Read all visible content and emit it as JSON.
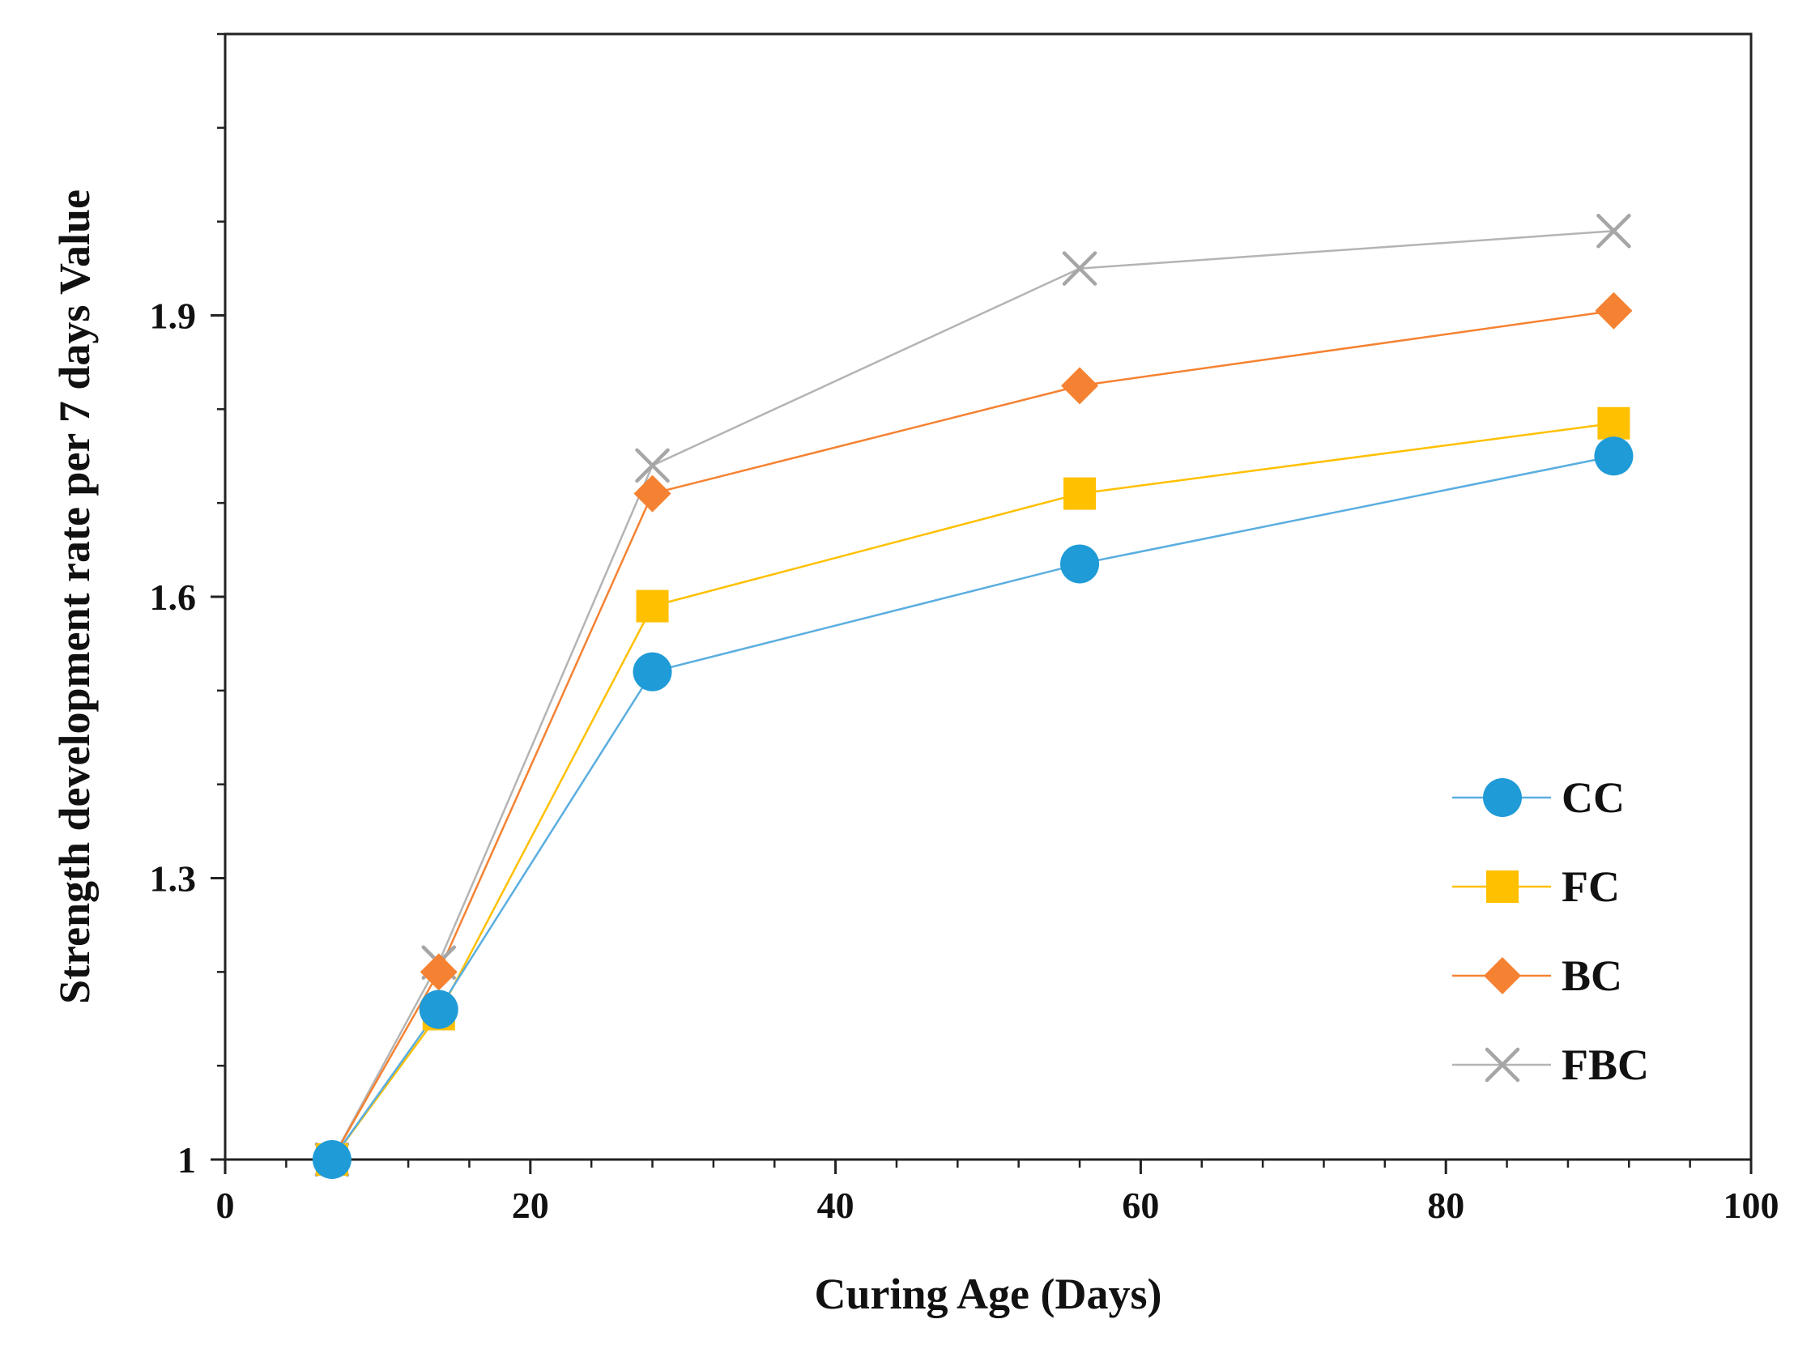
{
  "chart_data": {
    "type": "line",
    "title": "",
    "xlabel": "Curing  Age (Days)",
    "ylabel": "Strength development rate per 7 days Value",
    "xlim": [
      0,
      100
    ],
    "ylim": [
      1,
      2.2
    ],
    "xticks": [
      0,
      20,
      40,
      60,
      80,
      100
    ],
    "xtick_labels": [
      "0",
      "20",
      "40",
      "60",
      "80",
      "100"
    ],
    "yticks": [
      1,
      1.3,
      1.6,
      1.9
    ],
    "ytick_labels": [
      "1",
      "1.3",
      "1.6",
      "1.9"
    ],
    "x_minor_step": 4,
    "y_minor_step": 0.1,
    "grid": false,
    "legend_position": "bottom-right",
    "x": [
      7,
      14,
      28,
      56,
      91
    ],
    "series": [
      {
        "name": "CC",
        "marker": "circle",
        "color": "#1F9BD7",
        "line_color": "#5AAEE0",
        "values": [
          1.0,
          1.16,
          1.52,
          1.635,
          1.75
        ]
      },
      {
        "name": "FC",
        "marker": "square",
        "color": "#FFC000",
        "line_color": "#FFC000",
        "values": [
          1.0,
          1.155,
          1.59,
          1.71,
          1.785
        ]
      },
      {
        "name": "BC",
        "marker": "diamond",
        "color": "#F58232",
        "line_color": "#F58232",
        "values": [
          1.0,
          1.2,
          1.71,
          1.825,
          1.905
        ]
      },
      {
        "name": "FBC",
        "marker": "x",
        "color": "#A6A6A6",
        "line_color": "#B4B4B4",
        "values": [
          1.0,
          1.21,
          1.74,
          1.95,
          1.99
        ]
      }
    ]
  }
}
